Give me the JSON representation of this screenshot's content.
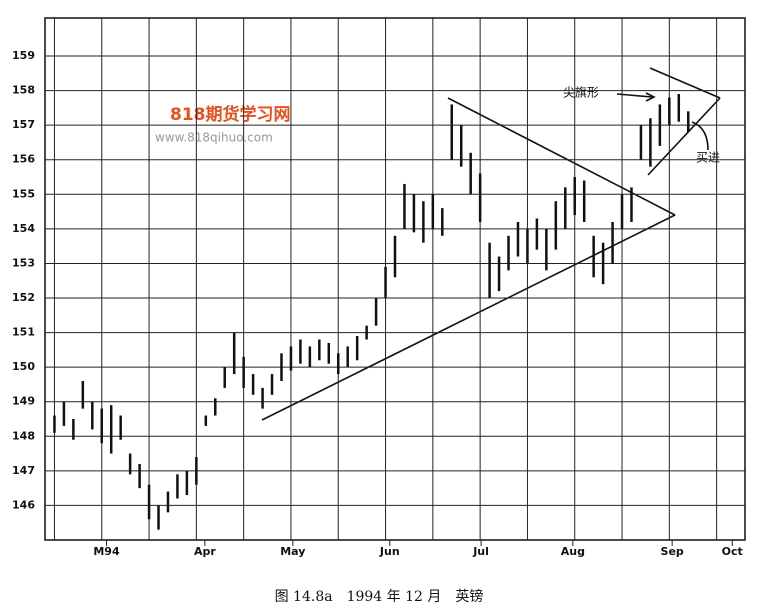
{
  "chart_data": {
    "type": "ohlc",
    "x": [
      0,
      2,
      4,
      6,
      8,
      10,
      12,
      14,
      16,
      18,
      20,
      22,
      24,
      26,
      28,
      30,
      32,
      34,
      36,
      38,
      40,
      42,
      44,
      46,
      48,
      50,
      52,
      54,
      56,
      58,
      60,
      62,
      64,
      66,
      68,
      70,
      72,
      74,
      76,
      78,
      80,
      82,
      84,
      86,
      88,
      90,
      92,
      94,
      96,
      98,
      100,
      102,
      104,
      106,
      108,
      110,
      112,
      114,
      116,
      118,
      120,
      122,
      124,
      126,
      128,
      130,
      132,
      134
    ],
    "highs": [
      148.6,
      149.0,
      148.5,
      149.6,
      149.0,
      148.8,
      148.9,
      148.6,
      147.5,
      147.2,
      146.6,
      146.0,
      146.4,
      146.9,
      147.0,
      147.4,
      148.6,
      149.1,
      150.0,
      151.0,
      150.3,
      149.8,
      149.4,
      149.8,
      150.4,
      150.6,
      150.8,
      150.6,
      150.8,
      150.7,
      150.4,
      150.6,
      150.9,
      151.2,
      152.0,
      152.9,
      153.8,
      155.3,
      155.0,
      154.8,
      155.0,
      154.6,
      157.6,
      157.0,
      156.2,
      155.6,
      153.6,
      153.2,
      153.8,
      154.2,
      154.0,
      154.3,
      154.0,
      154.8,
      155.2,
      155.5,
      155.4,
      153.8,
      153.6,
      154.2,
      155.0,
      155.2,
      157.0,
      157.2,
      157.6,
      157.8,
      157.9,
      157.4
    ],
    "lows": [
      148.1,
      148.3,
      147.9,
      148.8,
      148.2,
      147.8,
      147.5,
      147.9,
      146.9,
      146.5,
      145.6,
      145.3,
      145.8,
      146.2,
      146.3,
      146.6,
      148.3,
      148.6,
      149.4,
      149.8,
      149.4,
      149.2,
      148.8,
      149.2,
      149.6,
      149.9,
      150.1,
      150.0,
      150.2,
      150.1,
      149.8,
      150.0,
      150.2,
      150.8,
      151.2,
      152.0,
      152.6,
      154.0,
      153.9,
      153.6,
      154.0,
      153.8,
      156.0,
      155.8,
      155.0,
      154.2,
      152.0,
      152.2,
      152.8,
      153.2,
      153.0,
      153.4,
      152.8,
      153.4,
      154.0,
      154.4,
      154.2,
      152.6,
      152.4,
      153.0,
      154.0,
      154.2,
      156.0,
      155.8,
      156.4,
      157.0,
      157.1,
      156.8
    ],
    "color": "#111111",
    "xlim": [
      -2,
      146
    ],
    "ylim": [
      145,
      160.1
    ],
    "yticks": [
      146,
      147,
      148,
      149,
      150,
      151,
      152,
      153,
      154,
      155,
      156,
      157,
      158,
      159
    ],
    "xgrid": [
      0,
      10,
      20,
      30,
      40,
      50,
      60,
      70,
      80,
      90,
      100,
      110,
      120,
      130,
      140
    ],
    "xticks": [
      {
        "value": 11,
        "label": "M94"
      },
      {
        "value": 31.8,
        "label": "Apr"
      },
      {
        "value": 50.4,
        "label": "May"
      },
      {
        "value": 70.9,
        "label": "Jun"
      },
      {
        "value": 90.2,
        "label": "Jul"
      },
      {
        "value": 109.6,
        "label": "Aug"
      },
      {
        "value": 130.6,
        "label": "Sep"
      },
      {
        "value": 143.3,
        "label": "Oct"
      }
    ],
    "grid": true,
    "annotations": [
      "尖旗形",
      "买进"
    ],
    "watermark": [
      "818期货学习网",
      "www.818qihuo.com"
    ],
    "caption": "图 14.8a　1994 年 12 月　英镑"
  }
}
